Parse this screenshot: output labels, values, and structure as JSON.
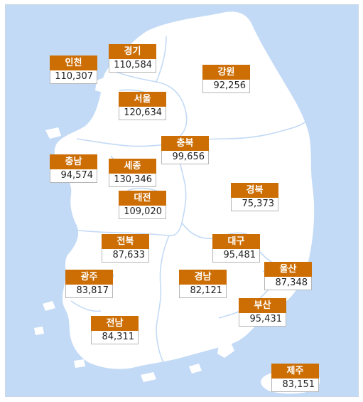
{
  "map": {
    "colors": {
      "sea": "#c3daf6",
      "land": "#ffffff",
      "border": "#c3daf6",
      "label_bg": "#cc6e04",
      "label_text": "#ffffff"
    },
    "regions": [
      {
        "id": "incheon",
        "name": "인천",
        "value": "110,307"
      },
      {
        "id": "gyeonggi",
        "name": "경기",
        "value": "110,584"
      },
      {
        "id": "gangwon",
        "name": "강원",
        "value": "92,256"
      },
      {
        "id": "seoul",
        "name": "서울",
        "value": "120,634"
      },
      {
        "id": "chungbuk",
        "name": "충북",
        "value": "99,656"
      },
      {
        "id": "chungnam",
        "name": "충남",
        "value": "94,574"
      },
      {
        "id": "sejong",
        "name": "세종",
        "value": "130,346"
      },
      {
        "id": "gyeongbuk",
        "name": "경북",
        "value": "75,373"
      },
      {
        "id": "daejeon",
        "name": "대전",
        "value": "109,020"
      },
      {
        "id": "jeonbuk",
        "name": "전북",
        "value": "87,633"
      },
      {
        "id": "daegu",
        "name": "대구",
        "value": "95,481"
      },
      {
        "id": "ulsan",
        "name": "울산",
        "value": "87,348"
      },
      {
        "id": "gwangju",
        "name": "광주",
        "value": "83,817"
      },
      {
        "id": "gyeongnam",
        "name": "경남",
        "value": "82,121"
      },
      {
        "id": "busan",
        "name": "부산",
        "value": "95,431"
      },
      {
        "id": "jeonnam",
        "name": "전남",
        "value": "84,311"
      },
      {
        "id": "jeju",
        "name": "제주",
        "value": "83,151"
      }
    ]
  }
}
